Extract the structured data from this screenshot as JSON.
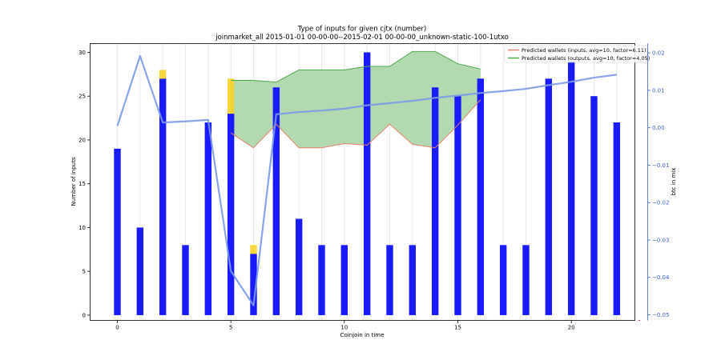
{
  "chart_data": {
    "type": "bar",
    "title": "Type of inputs for given cjtx (number)",
    "subtitle": "joinmarket_all 2015-01-01 00-00-00--2015-02-01 00-00-00_unknown-static-100-1utxo",
    "xlabel": "Coinjoin in time",
    "ylabel": "Number of inputs",
    "y2label": "btc in mix",
    "xlim": [
      -1.2,
      22.8
    ],
    "ylim": [
      -0.6,
      31.0
    ],
    "y2lim": [
      -0.0515,
      0.0225
    ],
    "x_ticks": [
      0,
      5,
      10,
      15,
      20
    ],
    "y_ticks": [
      0,
      5,
      10,
      15,
      20,
      25,
      30
    ],
    "y2_ticks": [
      0.02,
      0.01,
      0.0,
      -0.01,
      -0.02,
      -0.03,
      -0.04,
      -0.05
    ],
    "y2_tick_labels": [
      "0.02",
      "0.01",
      "0.00",
      "−0.01",
      "−0.02",
      "−0.03",
      "−0.04",
      "−0.05"
    ],
    "grid_x": true,
    "legend_position": "top-right",
    "categories": [
      0,
      1,
      2,
      3,
      4,
      5,
      6,
      7,
      8,
      9,
      10,
      11,
      12,
      13,
      14,
      15,
      16,
      17,
      18,
      19,
      20,
      21,
      22
    ],
    "series": [
      {
        "kind": "bar",
        "color": "#1a1aff",
        "values": [
          19,
          10,
          27,
          8,
          22,
          23,
          7,
          26,
          11,
          8,
          8,
          30,
          8,
          8,
          26,
          25,
          27,
          8,
          8,
          27,
          29,
          25,
          22
        ]
      },
      {
        "kind": "bar-stacked",
        "color": "#f5d327",
        "values": [
          0,
          0,
          1,
          0,
          0,
          4,
          1,
          0,
          0,
          0,
          0,
          0,
          0,
          0,
          0,
          0,
          0,
          0,
          0,
          0,
          0,
          0,
          0
        ]
      },
      {
        "name": "Predicted wallets (inputs, avg=10, factor=6.11)",
        "kind": "line",
        "color": "#e8826a",
        "x": [
          5,
          6,
          7,
          8,
          9,
          10,
          11,
          12,
          13,
          14,
          15,
          16
        ],
        "values": [
          20.8,
          19.1,
          21.8,
          19.1,
          19.1,
          19.6,
          19.4,
          21.8,
          19.5,
          19.1,
          21.7,
          24.6
        ]
      },
      {
        "name": "Predicted wallets (outputs, avg=10, factor=4.05)",
        "kind": "line",
        "color": "#4caa4c",
        "fill": "#b2d9b0",
        "x": [
          5,
          6,
          7,
          8,
          9,
          10,
          11,
          12,
          13,
          14,
          15,
          16
        ],
        "values": [
          26.8,
          26.8,
          26.6,
          28.0,
          28.0,
          28.0,
          28.4,
          28.4,
          30.1,
          30.1,
          28.7,
          28.1
        ]
      },
      {
        "kind": "line",
        "axis": "right",
        "color": "#7a9ae8",
        "x": [
          0,
          1,
          2,
          3,
          4,
          5,
          6,
          7,
          8,
          9,
          10,
          11,
          12,
          13,
          14,
          15,
          16,
          17,
          18,
          19,
          20,
          21,
          22
        ],
        "values": [
          0.0005,
          0.0192,
          0.0014,
          0.0017,
          0.0021,
          -0.0383,
          -0.0475,
          0.0036,
          0.0042,
          0.0046,
          0.0051,
          0.006,
          0.0066,
          0.0072,
          0.008,
          0.0086,
          0.0093,
          0.0098,
          0.0104,
          0.0114,
          0.0123,
          0.0134,
          0.0142
        ]
      }
    ],
    "colors": {
      "y2_axis": "#3a5ccc",
      "grid": "#e5e5e5"
    }
  }
}
